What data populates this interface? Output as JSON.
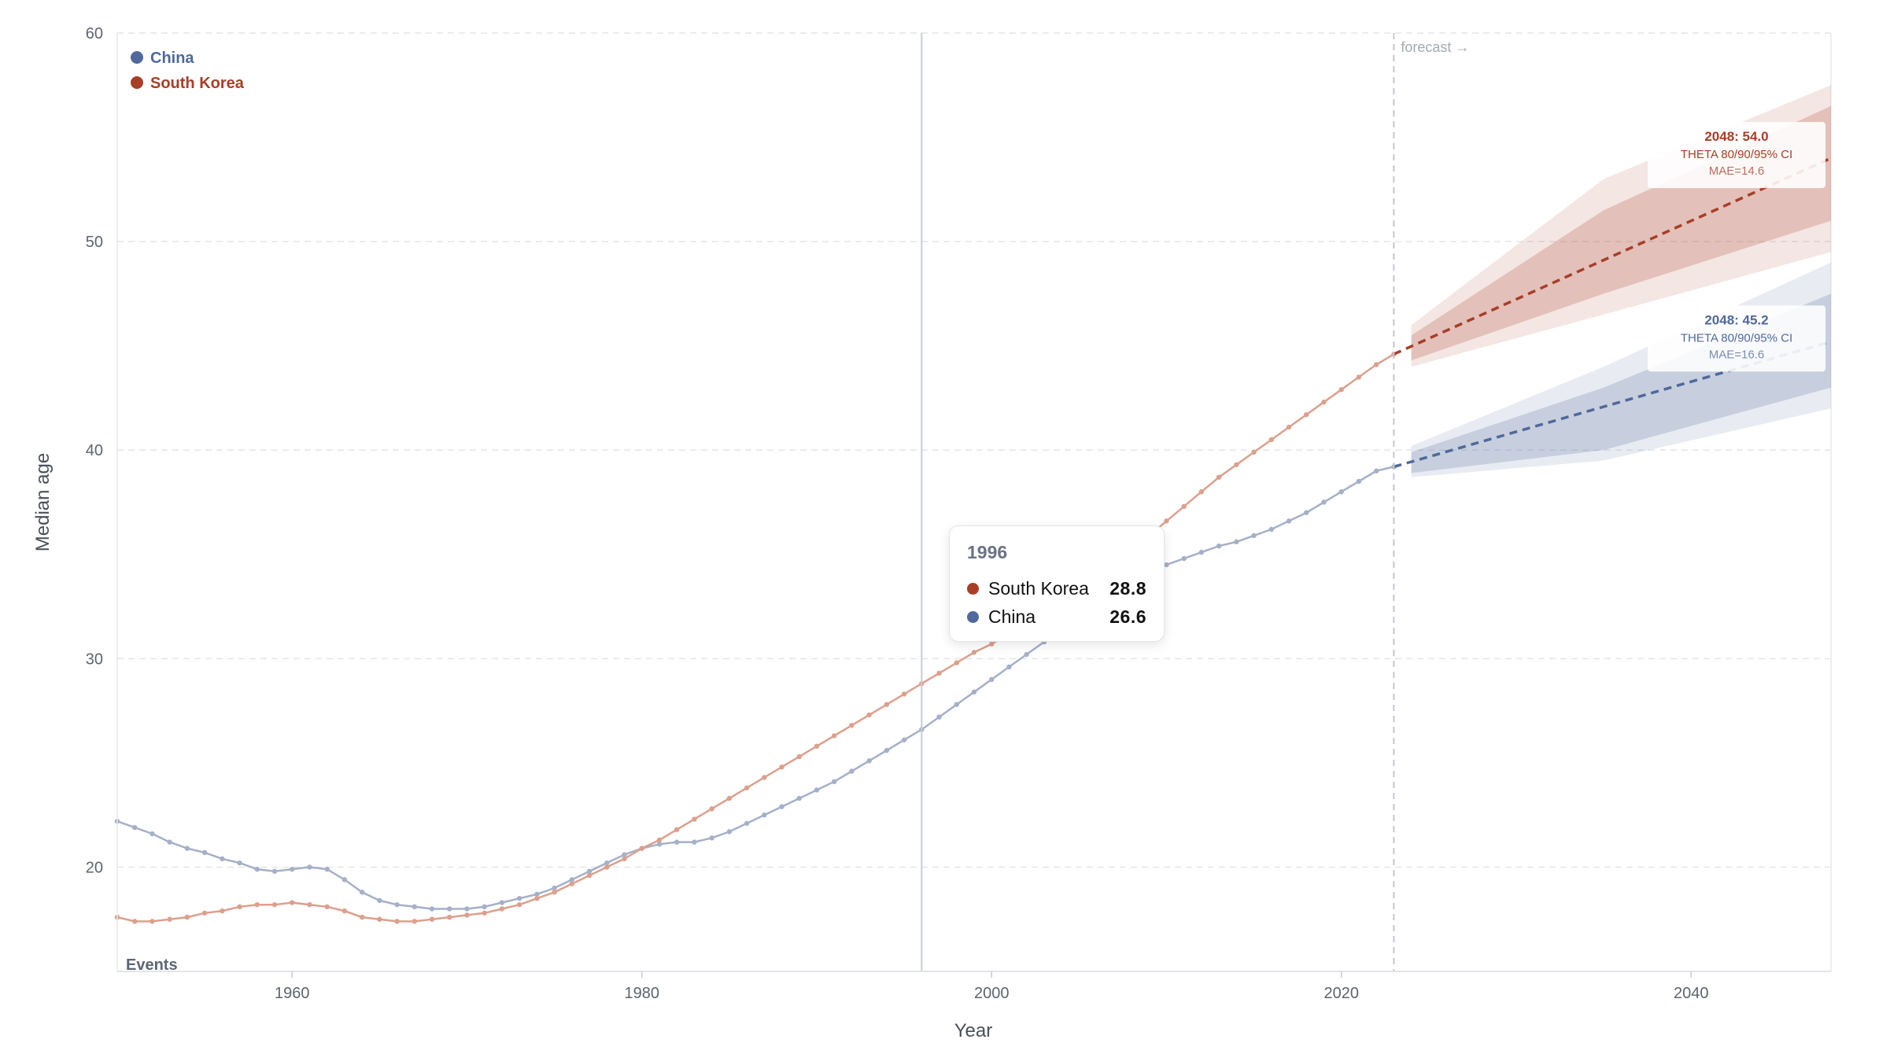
{
  "chart_data": {
    "type": "line",
    "xlabel": "Year",
    "ylabel": "Median age",
    "xlim": [
      1950,
      2048
    ],
    "ylim": [
      15,
      60
    ],
    "x_ticks": [
      1960,
      1980,
      2000,
      2020,
      2040
    ],
    "y_ticks": [
      20,
      30,
      40,
      50,
      60
    ],
    "grid": "horizontal dashed",
    "legend_position": "top-left",
    "legend": [
      "China",
      "South Korea"
    ],
    "forecast_start": 2023,
    "forecast_label": "forecast →",
    "events_label": "Events",
    "hover_year": 1996,
    "series": [
      {
        "name": "China",
        "color": "#50699a",
        "line_color": "#a5b0c8",
        "years": [
          1950,
          1951,
          1952,
          1953,
          1954,
          1955,
          1956,
          1957,
          1958,
          1959,
          1960,
          1961,
          1962,
          1963,
          1964,
          1965,
          1966,
          1967,
          1968,
          1969,
          1970,
          1971,
          1972,
          1973,
          1974,
          1975,
          1976,
          1977,
          1978,
          1979,
          1980,
          1981,
          1982,
          1983,
          1984,
          1985,
          1986,
          1987,
          1988,
          1989,
          1990,
          1991,
          1992,
          1993,
          1994,
          1995,
          1996,
          1997,
          1998,
          1999,
          2000,
          2001,
          2002,
          2003,
          2004,
          2005,
          2006,
          2007,
          2008,
          2009,
          2010,
          2011,
          2012,
          2013,
          2014,
          2015,
          2016,
          2017,
          2018,
          2019,
          2020,
          2021,
          2022,
          2023
        ],
        "values": [
          22.2,
          21.9,
          21.6,
          21.2,
          20.9,
          20.7,
          20.4,
          20.2,
          19.9,
          19.8,
          19.9,
          20.0,
          19.9,
          19.4,
          18.8,
          18.4,
          18.2,
          18.1,
          18.0,
          18.0,
          18.0,
          18.1,
          18.3,
          18.5,
          18.7,
          19.0,
          19.4,
          19.8,
          20.2,
          20.6,
          20.9,
          21.1,
          21.2,
          21.2,
          21.4,
          21.7,
          22.1,
          22.5,
          22.9,
          23.3,
          23.7,
          24.1,
          24.6,
          25.1,
          25.6,
          26.1,
          26.6,
          27.2,
          27.8,
          28.4,
          29.0,
          29.6,
          30.2,
          30.8,
          31.5,
          32.1,
          32.8,
          33.4,
          33.8,
          34.1,
          34.5,
          34.8,
          35.1,
          35.4,
          35.6,
          35.9,
          36.2,
          36.6,
          37.0,
          37.5,
          38.0,
          38.5,
          39.0,
          39.2
        ]
      },
      {
        "name": "South Korea",
        "color": "#a83e27",
        "line_color": "#dca08d",
        "years": [
          1950,
          1951,
          1952,
          1953,
          1954,
          1955,
          1956,
          1957,
          1958,
          1959,
          1960,
          1961,
          1962,
          1963,
          1964,
          1965,
          1966,
          1967,
          1968,
          1969,
          1970,
          1971,
          1972,
          1973,
          1974,
          1975,
          1976,
          1977,
          1978,
          1979,
          1980,
          1981,
          1982,
          1983,
          1984,
          1985,
          1986,
          1987,
          1988,
          1989,
          1990,
          1991,
          1992,
          1993,
          1994,
          1995,
          1996,
          1997,
          1998,
          1999,
          2000,
          2001,
          2002,
          2003,
          2004,
          2005,
          2006,
          2007,
          2008,
          2009,
          2010,
          2011,
          2012,
          2013,
          2014,
          2015,
          2016,
          2017,
          2018,
          2019,
          2020,
          2021,
          2022,
          2023
        ],
        "values": [
          17.6,
          17.4,
          17.4,
          17.5,
          17.6,
          17.8,
          17.9,
          18.1,
          18.2,
          18.2,
          18.3,
          18.2,
          18.1,
          17.9,
          17.6,
          17.5,
          17.4,
          17.4,
          17.5,
          17.6,
          17.7,
          17.8,
          18.0,
          18.2,
          18.5,
          18.8,
          19.2,
          19.6,
          20.0,
          20.4,
          20.9,
          21.3,
          21.8,
          22.3,
          22.8,
          23.3,
          23.8,
          24.3,
          24.8,
          25.3,
          25.8,
          26.3,
          26.8,
          27.3,
          27.8,
          28.3,
          28.8,
          29.3,
          29.8,
          30.3,
          30.7,
          31.2,
          31.7,
          32.3,
          32.9,
          33.5,
          34.1,
          34.7,
          35.3,
          35.9,
          36.6,
          37.3,
          38.0,
          38.7,
          39.3,
          39.9,
          40.5,
          41.1,
          41.7,
          42.3,
          42.9,
          43.5,
          44.1,
          44.6
        ]
      }
    ],
    "forecasts": [
      {
        "name": "China",
        "color": "#50699a",
        "years": [
          2023,
          2048
        ],
        "values": [
          39.2,
          45.2
        ],
        "band_80": [
          [
            2024,
            38.9,
            39.9
          ],
          [
            2035,
            40.0,
            43.0
          ],
          [
            2048,
            43.0,
            47.5
          ]
        ],
        "band_95": [
          [
            2024,
            38.7,
            40.2
          ],
          [
            2035,
            39.5,
            44.0
          ],
          [
            2048,
            42.0,
            49.0
          ]
        ],
        "label_title": "2048: 45.2",
        "label_ci": "THETA 80/90/95% CI",
        "label_mae": "MAE=16.6"
      },
      {
        "name": "South Korea",
        "color": "#a83e27",
        "years": [
          2023,
          2048
        ],
        "values": [
          44.6,
          54.0
        ],
        "band_80": [
          [
            2024,
            44.3,
            45.5
          ],
          [
            2035,
            47.5,
            51.5
          ],
          [
            2048,
            51.0,
            56.5
          ]
        ],
        "band_95": [
          [
            2024,
            44.0,
            46.0
          ],
          [
            2035,
            46.5,
            53.0
          ],
          [
            2048,
            49.5,
            57.5
          ]
        ],
        "label_title": "2048: 54.0",
        "label_ci": "THETA 80/90/95% CI",
        "label_mae": "MAE=14.6"
      }
    ]
  },
  "tooltip": {
    "year": "1996",
    "rows": [
      {
        "name": "South Korea",
        "value": "28.8",
        "color": "#a83e27"
      },
      {
        "name": "China",
        "value": "26.6",
        "color": "#50699a"
      }
    ]
  }
}
